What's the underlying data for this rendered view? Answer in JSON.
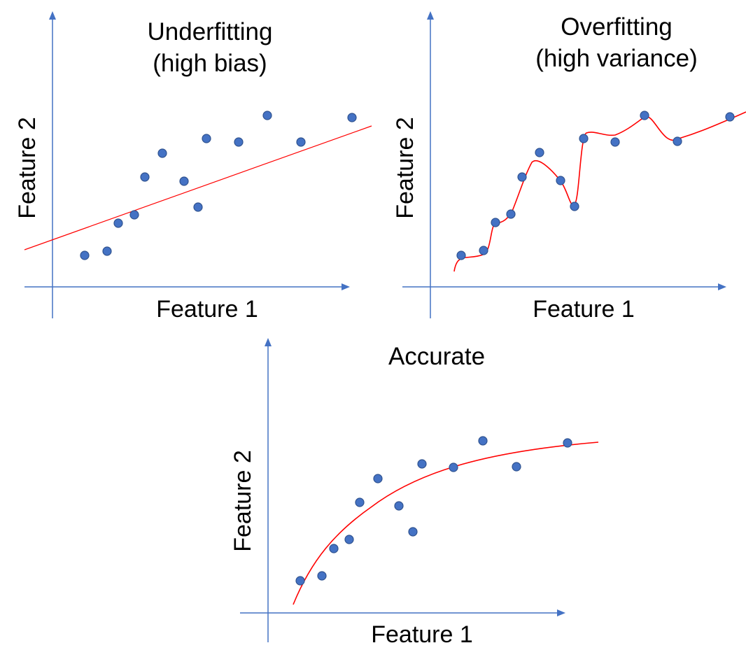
{
  "colors": {
    "axis": "#4472c4",
    "point_fill": "#4472c4",
    "point_stroke": "#2f528f",
    "fit_line": "#ff0000"
  },
  "panels": [
    {
      "title_lines": [
        "Underfitting",
        "(high bias)"
      ],
      "xlabel": "Feature 1",
      "ylabel": "Feature 2",
      "fit": "linear"
    },
    {
      "title_lines": [
        "Overfitting",
        "(high variance)"
      ],
      "xlabel": "Feature 1",
      "ylabel": "Feature 2",
      "fit": "interpolating spline"
    },
    {
      "title_lines": [
        "Accurate"
      ],
      "xlabel": "Feature 1",
      "ylabel": "Feature 2",
      "fit": "concave curve"
    }
  ],
  "chart_data": [
    {
      "type": "scatter",
      "title": "Underfitting (high bias)",
      "xlabel": "Feature 1",
      "ylabel": "Feature 2",
      "points": [
        [
          1.0,
          1.2
        ],
        [
          1.7,
          1.4
        ],
        [
          2.3,
          2.6
        ],
        [
          2.8,
          2.9
        ],
        [
          3.1,
          4.4
        ],
        [
          3.6,
          5.4
        ],
        [
          4.2,
          4.4
        ],
        [
          4.6,
          3.3
        ],
        [
          4.9,
          6.3
        ],
        [
          5.9,
          6.2
        ],
        [
          6.9,
          7.3
        ],
        [
          8.0,
          6.2
        ],
        [
          9.6,
          7.2
        ]
      ],
      "fit_line": {
        "kind": "linear",
        "from": [
          -0.7,
          1.6
        ],
        "to": [
          10.2,
          6.8
        ]
      },
      "xlim": [
        -1,
        10
      ],
      "ylim": [
        0,
        13
      ]
    },
    {
      "type": "scatter",
      "title": "Overfitting (high variance)",
      "xlabel": "Feature 1",
      "ylabel": "Feature 2",
      "points": [
        [
          1.0,
          1.3
        ],
        [
          1.7,
          1.5
        ],
        [
          2.1,
          2.7
        ],
        [
          2.6,
          3.1
        ],
        [
          2.9,
          4.7
        ],
        [
          3.5,
          5.8
        ],
        [
          4.2,
          4.6
        ],
        [
          4.6,
          3.4
        ],
        [
          4.9,
          6.8
        ],
        [
          5.9,
          6.7
        ],
        [
          7.2,
          7.7
        ],
        [
          8.1,
          6.7
        ],
        [
          9.8,
          7.7
        ]
      ],
      "fit_line": {
        "kind": "interpolating"
      },
      "xlim": [
        -1,
        10
      ],
      "ylim": [
        0,
        13
      ]
    },
    {
      "type": "scatter",
      "title": "Accurate",
      "xlabel": "Feature 1",
      "ylabel": "Feature 2",
      "points": [
        [
          1.1,
          1.2
        ],
        [
          1.8,
          1.4
        ],
        [
          2.4,
          2.6
        ],
        [
          2.8,
          2.9
        ],
        [
          3.0,
          4.4
        ],
        [
          3.6,
          5.4
        ],
        [
          4.2,
          4.4
        ],
        [
          4.7,
          3.3
        ],
        [
          5.1,
          6.3
        ],
        [
          6.1,
          6.2
        ],
        [
          7.1,
          7.2
        ],
        [
          8.0,
          6.2
        ],
        [
          9.6,
          7.1
        ]
      ],
      "fit_line": {
        "kind": "concave"
      },
      "xlim": [
        -1,
        10
      ],
      "ylim": [
        0,
        13
      ]
    }
  ]
}
